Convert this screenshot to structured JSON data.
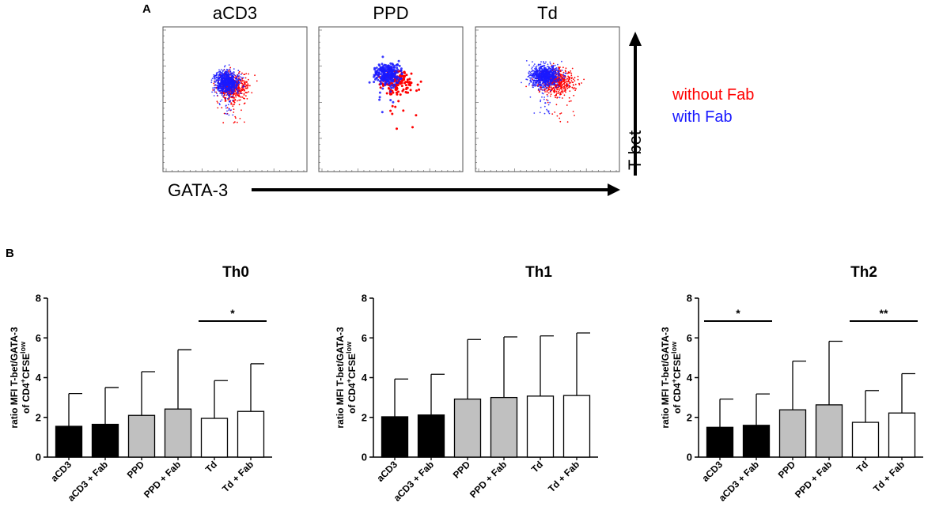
{
  "panel_a": {
    "label": "A",
    "plots": [
      {
        "title": "aCD3"
      },
      {
        "title": "PPD"
      },
      {
        "title": "Td"
      }
    ],
    "x_axis_label": "GATA-3",
    "y_axis_label": "T-bet",
    "legend": [
      {
        "label": "without Fab",
        "color": "#ff0000"
      },
      {
        "label": "with Fab",
        "color": "#1a1aff"
      }
    ]
  },
  "panel_b": {
    "label": "B",
    "ylabel_line1": "ratio MFI T-bet/GATA-3",
    "ylabel_line2_prefix": "of CD4",
    "ylabel_sup1": "+",
    "ylabel_mid": "CFSE",
    "ylabel_sup2": "low"
  },
  "colors": {
    "black_bar": "#000000",
    "grey_bar": "#c0c0c0",
    "white_bar": "#ffffff",
    "with_fab": "#1a1aff",
    "without_fab": "#ff0000"
  },
  "chart_data": [
    {
      "type": "bar",
      "title": "Th0",
      "categories": [
        "aCD3",
        "aCD3 + Fab",
        "PPD",
        "PPD + Fab",
        "Td",
        "Td + Fab"
      ],
      "values": [
        1.55,
        1.65,
        2.1,
        2.42,
        1.95,
        2.3
      ],
      "errors": [
        1.65,
        1.85,
        2.2,
        2.98,
        1.9,
        2.4
      ],
      "bar_fills": [
        "black",
        "black",
        "grey",
        "grey",
        "white",
        "white"
      ],
      "ylim": [
        0,
        8
      ],
      "yticks": [
        "0",
        "2",
        "4",
        "6",
        "8"
      ],
      "significance": [
        {
          "from": 4,
          "to": 5,
          "label": "*"
        }
      ]
    },
    {
      "type": "bar",
      "title": "Th1",
      "categories": [
        "aCD3",
        "aCD3 + Fab",
        "PPD",
        "PPD + Fab",
        "Td",
        "Td + Fab"
      ],
      "values": [
        2.03,
        2.12,
        2.92,
        3.0,
        3.07,
        3.1
      ],
      "errors": [
        1.9,
        2.05,
        3.0,
        3.05,
        3.03,
        3.15
      ],
      "bar_fills": [
        "black",
        "black",
        "grey",
        "grey",
        "white",
        "white"
      ],
      "ylim": [
        0,
        8
      ],
      "yticks": [
        "0",
        "2",
        "4",
        "6",
        "8"
      ],
      "significance": []
    },
    {
      "type": "bar",
      "title": "Th2",
      "categories": [
        "aCD3",
        "aCD3 + Fab",
        "PPD",
        "PPD + Fab",
        "Td",
        "Td + Fab"
      ],
      "values": [
        1.5,
        1.6,
        2.38,
        2.63,
        1.75,
        2.22
      ],
      "errors": [
        1.42,
        1.58,
        2.45,
        3.2,
        1.6,
        1.98
      ],
      "bar_fills": [
        "black",
        "black",
        "grey",
        "grey",
        "white",
        "white"
      ],
      "ylim": [
        0,
        8
      ],
      "yticks": [
        "0",
        "2",
        "4",
        "6",
        "8"
      ],
      "significance": [
        {
          "from": 0,
          "to": 1,
          "label": "*"
        },
        {
          "from": 4,
          "to": 5,
          "label": "**"
        }
      ]
    }
  ]
}
